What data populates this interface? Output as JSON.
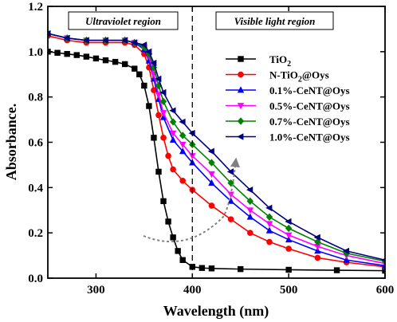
{
  "chart_data": {
    "type": "line",
    "xlabel": "Wavelength (nm)",
    "ylabel": "Absorbance.",
    "xlim": [
      250,
      600
    ],
    "ylim": [
      0.0,
      1.2
    ],
    "xticks": [
      300,
      400,
      500,
      600
    ],
    "yticks": [
      0.0,
      0.2,
      0.4,
      0.6,
      0.8,
      1.0,
      1.2
    ],
    "grid": false,
    "legend_position": "right",
    "annotations": {
      "region_left": "Ultraviolet region",
      "region_right": "Visible light region",
      "divider_x": 400
    },
    "series": [
      {
        "name": "TiO2",
        "legend_main": "TiO",
        "legend_sub": "2",
        "legend_tail": "",
        "color": "#000000",
        "marker": "square",
        "x": [
          250,
          260,
          270,
          280,
          290,
          300,
          310,
          320,
          330,
          340,
          345,
          350,
          355,
          360,
          365,
          370,
          375,
          380,
          385,
          390,
          400,
          410,
          420,
          450,
          500,
          550,
          600
        ],
        "y": [
          1.0,
          0.995,
          0.99,
          0.985,
          0.978,
          0.97,
          0.962,
          0.955,
          0.945,
          0.925,
          0.9,
          0.85,
          0.76,
          0.62,
          0.47,
          0.34,
          0.25,
          0.18,
          0.12,
          0.08,
          0.05,
          0.045,
          0.043,
          0.04,
          0.037,
          0.035,
          0.033
        ]
      },
      {
        "name": "N-TiO2@Oys",
        "legend_main": "N-TiO",
        "legend_sub": "2",
        "legend_tail": "@Oys",
        "color": "#ff0000",
        "marker": "circle",
        "x": [
          250,
          270,
          290,
          310,
          330,
          340,
          350,
          355,
          360,
          365,
          370,
          375,
          380,
          390,
          400,
          420,
          440,
          460,
          480,
          500,
          530,
          560,
          600
        ],
        "y": [
          1.07,
          1.05,
          1.04,
          1.04,
          1.04,
          1.03,
          0.99,
          0.93,
          0.83,
          0.72,
          0.62,
          0.54,
          0.48,
          0.43,
          0.39,
          0.32,
          0.26,
          0.2,
          0.16,
          0.13,
          0.09,
          0.07,
          0.05
        ]
      },
      {
        "name": "0.1%-CeNT@Oys",
        "legend_main": "0.1%-CeNT@Oys",
        "legend_sub": "",
        "legend_tail": "",
        "color": "#0000ff",
        "marker": "triangle-up",
        "x": [
          250,
          270,
          290,
          310,
          330,
          340,
          350,
          355,
          360,
          365,
          370,
          380,
          390,
          400,
          420,
          440,
          460,
          480,
          500,
          530,
          560,
          600
        ],
        "y": [
          1.08,
          1.06,
          1.05,
          1.05,
          1.05,
          1.04,
          1.01,
          0.96,
          0.88,
          0.79,
          0.71,
          0.61,
          0.56,
          0.51,
          0.42,
          0.34,
          0.27,
          0.21,
          0.17,
          0.12,
          0.08,
          0.055
        ]
      },
      {
        "name": "0.5%-CeNT@Oys",
        "legend_main": "0.5%-CeNT@Oys",
        "legend_sub": "",
        "legend_tail": "",
        "color": "#ff00ff",
        "marker": "triangle-down",
        "x": [
          250,
          270,
          290,
          310,
          330,
          340,
          350,
          355,
          360,
          365,
          370,
          380,
          390,
          400,
          420,
          440,
          460,
          480,
          500,
          530,
          560,
          600
        ],
        "y": [
          1.08,
          1.06,
          1.05,
          1.05,
          1.05,
          1.04,
          1.02,
          0.98,
          0.9,
          0.81,
          0.73,
          0.64,
          0.59,
          0.54,
          0.46,
          0.37,
          0.3,
          0.24,
          0.19,
          0.14,
          0.1,
          0.065
        ]
      },
      {
        "name": "0.7%-CeNT@Oys",
        "legend_main": "0.7%-CeNT@Oys",
        "legend_sub": "",
        "legend_tail": "",
        "color": "#008000",
        "marker": "diamond",
        "x": [
          250,
          270,
          290,
          310,
          330,
          340,
          350,
          355,
          360,
          365,
          370,
          380,
          390,
          400,
          420,
          440,
          460,
          480,
          500,
          530,
          560,
          600
        ],
        "y": [
          1.08,
          1.06,
          1.05,
          1.05,
          1.05,
          1.04,
          1.02,
          0.99,
          0.93,
          0.85,
          0.78,
          0.69,
          0.63,
          0.59,
          0.51,
          0.42,
          0.34,
          0.27,
          0.22,
          0.16,
          0.11,
          0.075
        ]
      },
      {
        "name": "1.0%-CeNT@Oys",
        "legend_main": "1.0%-CeNT@Oys",
        "legend_sub": "",
        "legend_tail": "",
        "color": "#000080",
        "marker": "triangle-left",
        "x": [
          250,
          270,
          290,
          310,
          330,
          340,
          350,
          355,
          360,
          365,
          370,
          380,
          390,
          400,
          420,
          440,
          460,
          480,
          500,
          530,
          560,
          600
        ],
        "y": [
          1.08,
          1.06,
          1.05,
          1.05,
          1.05,
          1.04,
          1.03,
          1.0,
          0.95,
          0.88,
          0.82,
          0.74,
          0.69,
          0.64,
          0.56,
          0.47,
          0.39,
          0.31,
          0.25,
          0.18,
          0.12,
          0.08
        ]
      }
    ]
  }
}
